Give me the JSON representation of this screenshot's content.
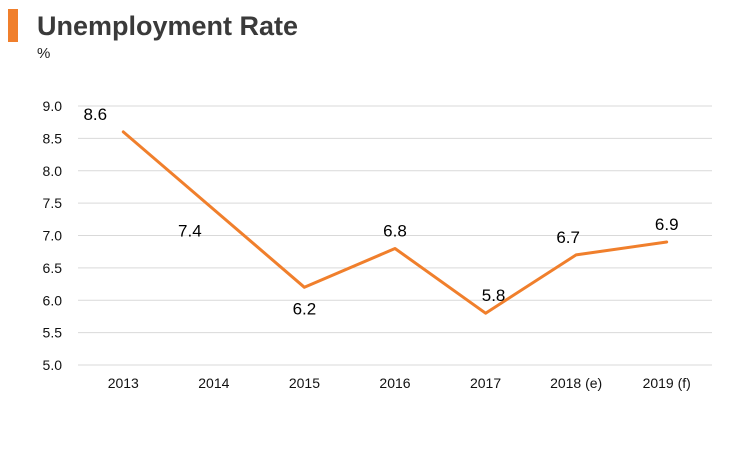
{
  "chart_data": {
    "type": "line",
    "title": "Unemployment Rate",
    "ylabel": "%",
    "xlabel": "",
    "categories": [
      "2013",
      "2014",
      "2015",
      "2016",
      "2017",
      "2018 (e)",
      "2019 (f)"
    ],
    "series": [
      {
        "values": [
          8.6,
          7.4,
          6.2,
          6.8,
          5.8,
          6.7,
          6.9
        ]
      }
    ],
    "data_labels": [
      "8.6",
      "7.4",
      "6.2",
      "6.8",
      "5.8",
      "6.7",
      "6.9"
    ],
    "yticks": [
      "9.0",
      "8.5",
      "8.0",
      "7.5",
      "7.0",
      "6.5",
      "6.0",
      "5.5",
      "5.0"
    ],
    "ylim": [
      5.0,
      9.0
    ],
    "grid": true,
    "legend": "none",
    "colors": {
      "line": "#f07f2c",
      "accent": "#f07f2c",
      "grid": "#d9d9d9",
      "title": "#3a3a3a"
    }
  }
}
